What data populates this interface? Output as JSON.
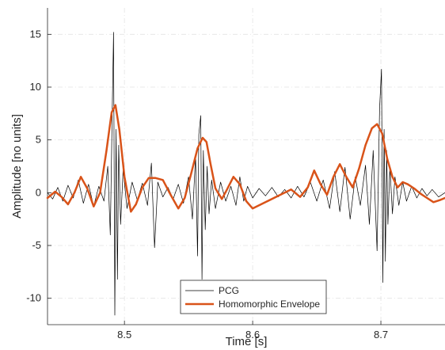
{
  "chart_data": {
    "type": "line",
    "title": "",
    "xlabel": "Time [s]",
    "ylabel": "Amplitude [no units]",
    "xlim": [
      8.44,
      8.75
    ],
    "ylim": [
      -12.5,
      17.5
    ],
    "xticks": [
      8.5,
      8.6,
      8.7
    ],
    "xtick_labels": [
      "8.5",
      "8.6",
      "8.7"
    ],
    "yticks": [
      -10,
      -5,
      0,
      5,
      10,
      15
    ],
    "ytick_labels": [
      "-10",
      "-5",
      "0",
      "5",
      "10",
      "15"
    ],
    "grid": true,
    "legend_position": "bottom-center",
    "colors": {
      "pcg": "#000000",
      "envelope": "#d95319",
      "grid": "#e3e3e3",
      "axis": "#262626"
    },
    "series": [
      {
        "name": "PCG",
        "x": [
          8.44,
          8.444,
          8.448,
          8.452,
          8.456,
          8.46,
          8.464,
          8.468,
          8.472,
          8.476,
          8.48,
          8.484,
          8.487,
          8.489,
          8.4905,
          8.4915,
          8.4925,
          8.4935,
          8.4945,
          8.4955,
          8.497,
          8.499,
          8.502,
          8.506,
          8.51,
          8.514,
          8.518,
          8.521,
          8.5235,
          8.526,
          8.53,
          8.534,
          8.538,
          8.542,
          8.546,
          8.55,
          8.553,
          8.5555,
          8.557,
          8.558,
          8.5595,
          8.5605,
          8.5615,
          8.563,
          8.5645,
          8.566,
          8.568,
          8.571,
          8.575,
          8.579,
          8.583,
          8.587,
          8.59,
          8.593,
          8.596,
          8.6,
          8.605,
          8.61,
          8.615,
          8.62,
          8.625,
          8.63,
          8.635,
          8.64,
          8.645,
          8.65,
          8.655,
          8.66,
          8.664,
          8.668,
          8.672,
          8.676,
          8.68,
          8.684,
          8.688,
          8.691,
          8.694,
          8.697,
          8.699,
          8.7005,
          8.7015,
          8.7025,
          8.7035,
          8.7045,
          8.7055,
          8.707,
          8.709,
          8.711,
          8.714,
          8.717,
          8.72,
          8.724,
          8.728,
          8.732,
          8.736,
          8.74,
          8.745,
          8.75
        ],
        "y": [
          0.0,
          -0.6,
          0.5,
          -0.8,
          0.7,
          -0.5,
          1.2,
          -1.0,
          0.8,
          -1.3,
          0.6,
          -0.8,
          2.5,
          -4.0,
          8.0,
          15.2,
          -11.6,
          6.0,
          -8.2,
          4.5,
          -3.0,
          2.2,
          -1.5,
          1.0,
          -0.7,
          0.9,
          -1.2,
          2.8,
          -5.2,
          1.0,
          -0.4,
          0.5,
          -0.6,
          0.8,
          -1.0,
          1.5,
          -2.5,
          3.5,
          -6.0,
          5.5,
          7.3,
          -8.2,
          4.0,
          -3.5,
          2.5,
          -2.0,
          1.2,
          -1.5,
          1.0,
          -0.8,
          0.6,
          -1.2,
          1.5,
          -0.8,
          0.6,
          -0.5,
          0.4,
          -0.3,
          0.5,
          -0.4,
          0.3,
          -0.5,
          0.6,
          -0.4,
          1.0,
          -0.8,
          1.2,
          -1.5,
          2.0,
          -1.8,
          2.4,
          -2.5,
          1.5,
          -1.2,
          2.6,
          -3.0,
          4.0,
          -5.5,
          8.0,
          11.7,
          -8.5,
          6.0,
          -6.5,
          4.0,
          -3.0,
          2.5,
          -2.0,
          1.5,
          -1.2,
          1.0,
          -0.8,
          0.6,
          -0.5,
          0.4,
          -0.3,
          0.3,
          -0.4,
          0.0
        ]
      },
      {
        "name": "Homomorphic Envelope",
        "x": [
          8.44,
          8.446,
          8.451,
          8.456,
          8.461,
          8.466,
          8.471,
          8.476,
          8.481,
          8.486,
          8.49,
          8.493,
          8.496,
          8.5,
          8.505,
          8.509,
          8.514,
          8.519,
          8.524,
          8.53,
          8.536,
          8.542,
          8.547,
          8.552,
          8.557,
          8.561,
          8.564,
          8.567,
          8.571,
          8.576,
          8.58,
          8.585,
          8.59,
          8.595,
          8.6,
          8.61,
          8.62,
          8.63,
          8.637,
          8.643,
          8.648,
          8.653,
          8.658,
          8.663,
          8.668,
          8.673,
          8.678,
          8.683,
          8.688,
          8.693,
          8.697,
          8.701,
          8.705,
          8.709,
          8.713,
          8.717,
          8.721,
          8.726,
          8.731,
          8.736,
          8.741,
          8.746,
          8.75
        ],
        "y": [
          -0.5,
          0.1,
          -0.4,
          -1.1,
          0.0,
          1.5,
          0.4,
          -1.3,
          0.0,
          4.0,
          7.6,
          8.3,
          6.0,
          1.5,
          -1.8,
          -1.1,
          0.5,
          1.4,
          1.4,
          1.2,
          -0.2,
          -1.5,
          -0.5,
          1.8,
          4.2,
          5.2,
          4.8,
          2.8,
          0.4,
          -0.6,
          0.3,
          1.5,
          0.8,
          -0.8,
          -1.5,
          -0.9,
          -0.3,
          0.3,
          -0.4,
          0.5,
          2.1,
          0.8,
          -0.2,
          1.5,
          2.7,
          1.5,
          0.5,
          2.3,
          4.5,
          6.1,
          6.5,
          5.6,
          3.2,
          1.5,
          0.5,
          1.0,
          0.8,
          0.4,
          -0.1,
          -0.5,
          -0.9,
          -0.7,
          -0.5
        ]
      }
    ]
  }
}
